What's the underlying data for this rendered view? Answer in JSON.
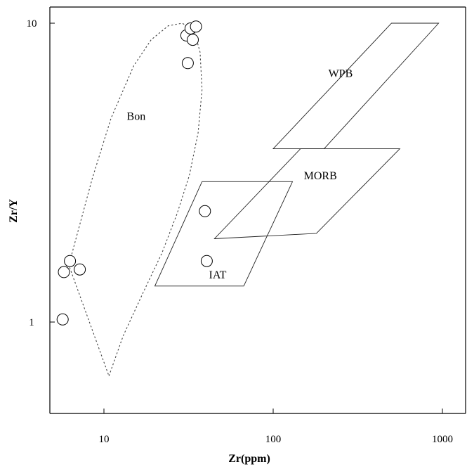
{
  "chart_data": {
    "type": "scatter",
    "title": "",
    "xlabel": "Zr(ppm)",
    "ylabel": "Zr/Y",
    "xscale": "log",
    "yscale": "log",
    "xlim": [
      5.5,
      1100
    ],
    "ylim": [
      0.6,
      11
    ],
    "x_ticks": [
      10,
      100,
      1000
    ],
    "x_tick_labels": [
      "10",
      "100",
      "1000"
    ],
    "y_ticks": [
      1,
      10
    ],
    "y_tick_labels": [
      "1",
      "10"
    ],
    "grid": false,
    "legend": "none",
    "series": [
      {
        "points": [
          [
            30.7,
            9.1
          ],
          [
            32.5,
            9.6
          ],
          [
            35.0,
            9.75
          ],
          [
            33.5,
            8.8
          ],
          [
            31.3,
            7.35
          ],
          [
            39.5,
            2.35
          ],
          [
            40.5,
            1.6
          ],
          [
            6.3,
            1.6
          ],
          [
            5.8,
            1.47
          ],
          [
            7.2,
            1.5
          ],
          [
            5.7,
            1.02
          ]
        ]
      }
    ],
    "fields": [
      {
        "label": "WPB",
        "label_at": [
          250,
          6.6
        ],
        "polygon": [
          [
            100,
            3.8
          ],
          [
            500,
            10
          ],
          [
            950,
            10
          ],
          [
            200,
            3.8
          ]
        ]
      },
      {
        "label": "MORB",
        "label_at": [
          190,
          3.0
        ],
        "polygon": [
          [
            45,
            1.9
          ],
          [
            180,
            1.98
          ],
          [
            560,
            3.8
          ],
          [
            145,
            3.8
          ]
        ]
      },
      {
        "label": "IAT",
        "label_at": [
          47,
          1.4
        ],
        "polygon": [
          [
            20,
            1.32
          ],
          [
            67,
            1.32
          ],
          [
            130,
            2.95
          ],
          [
            38,
            2.95
          ]
        ]
      },
      {
        "label": "Bon",
        "label_at": [
          15.5,
          4.75
        ],
        "boundary": "dashed",
        "polygon": [
          [
            10.7,
            0.66
          ],
          [
            13,
            0.9
          ],
          [
            17,
            1.25
          ],
          [
            22,
            1.7
          ],
          [
            27,
            2.3
          ],
          [
            32,
            3.1
          ],
          [
            36,
            4.3
          ],
          [
            38,
            6
          ],
          [
            37,
            8
          ],
          [
            34,
            9.5
          ],
          [
            29,
            10
          ],
          [
            24,
            9.8
          ],
          [
            19,
            8.8
          ],
          [
            15,
            7.2
          ],
          [
            11,
            4.8
          ],
          [
            8.5,
            3
          ],
          [
            7,
            2
          ],
          [
            6.2,
            1.55
          ]
        ]
      }
    ]
  }
}
